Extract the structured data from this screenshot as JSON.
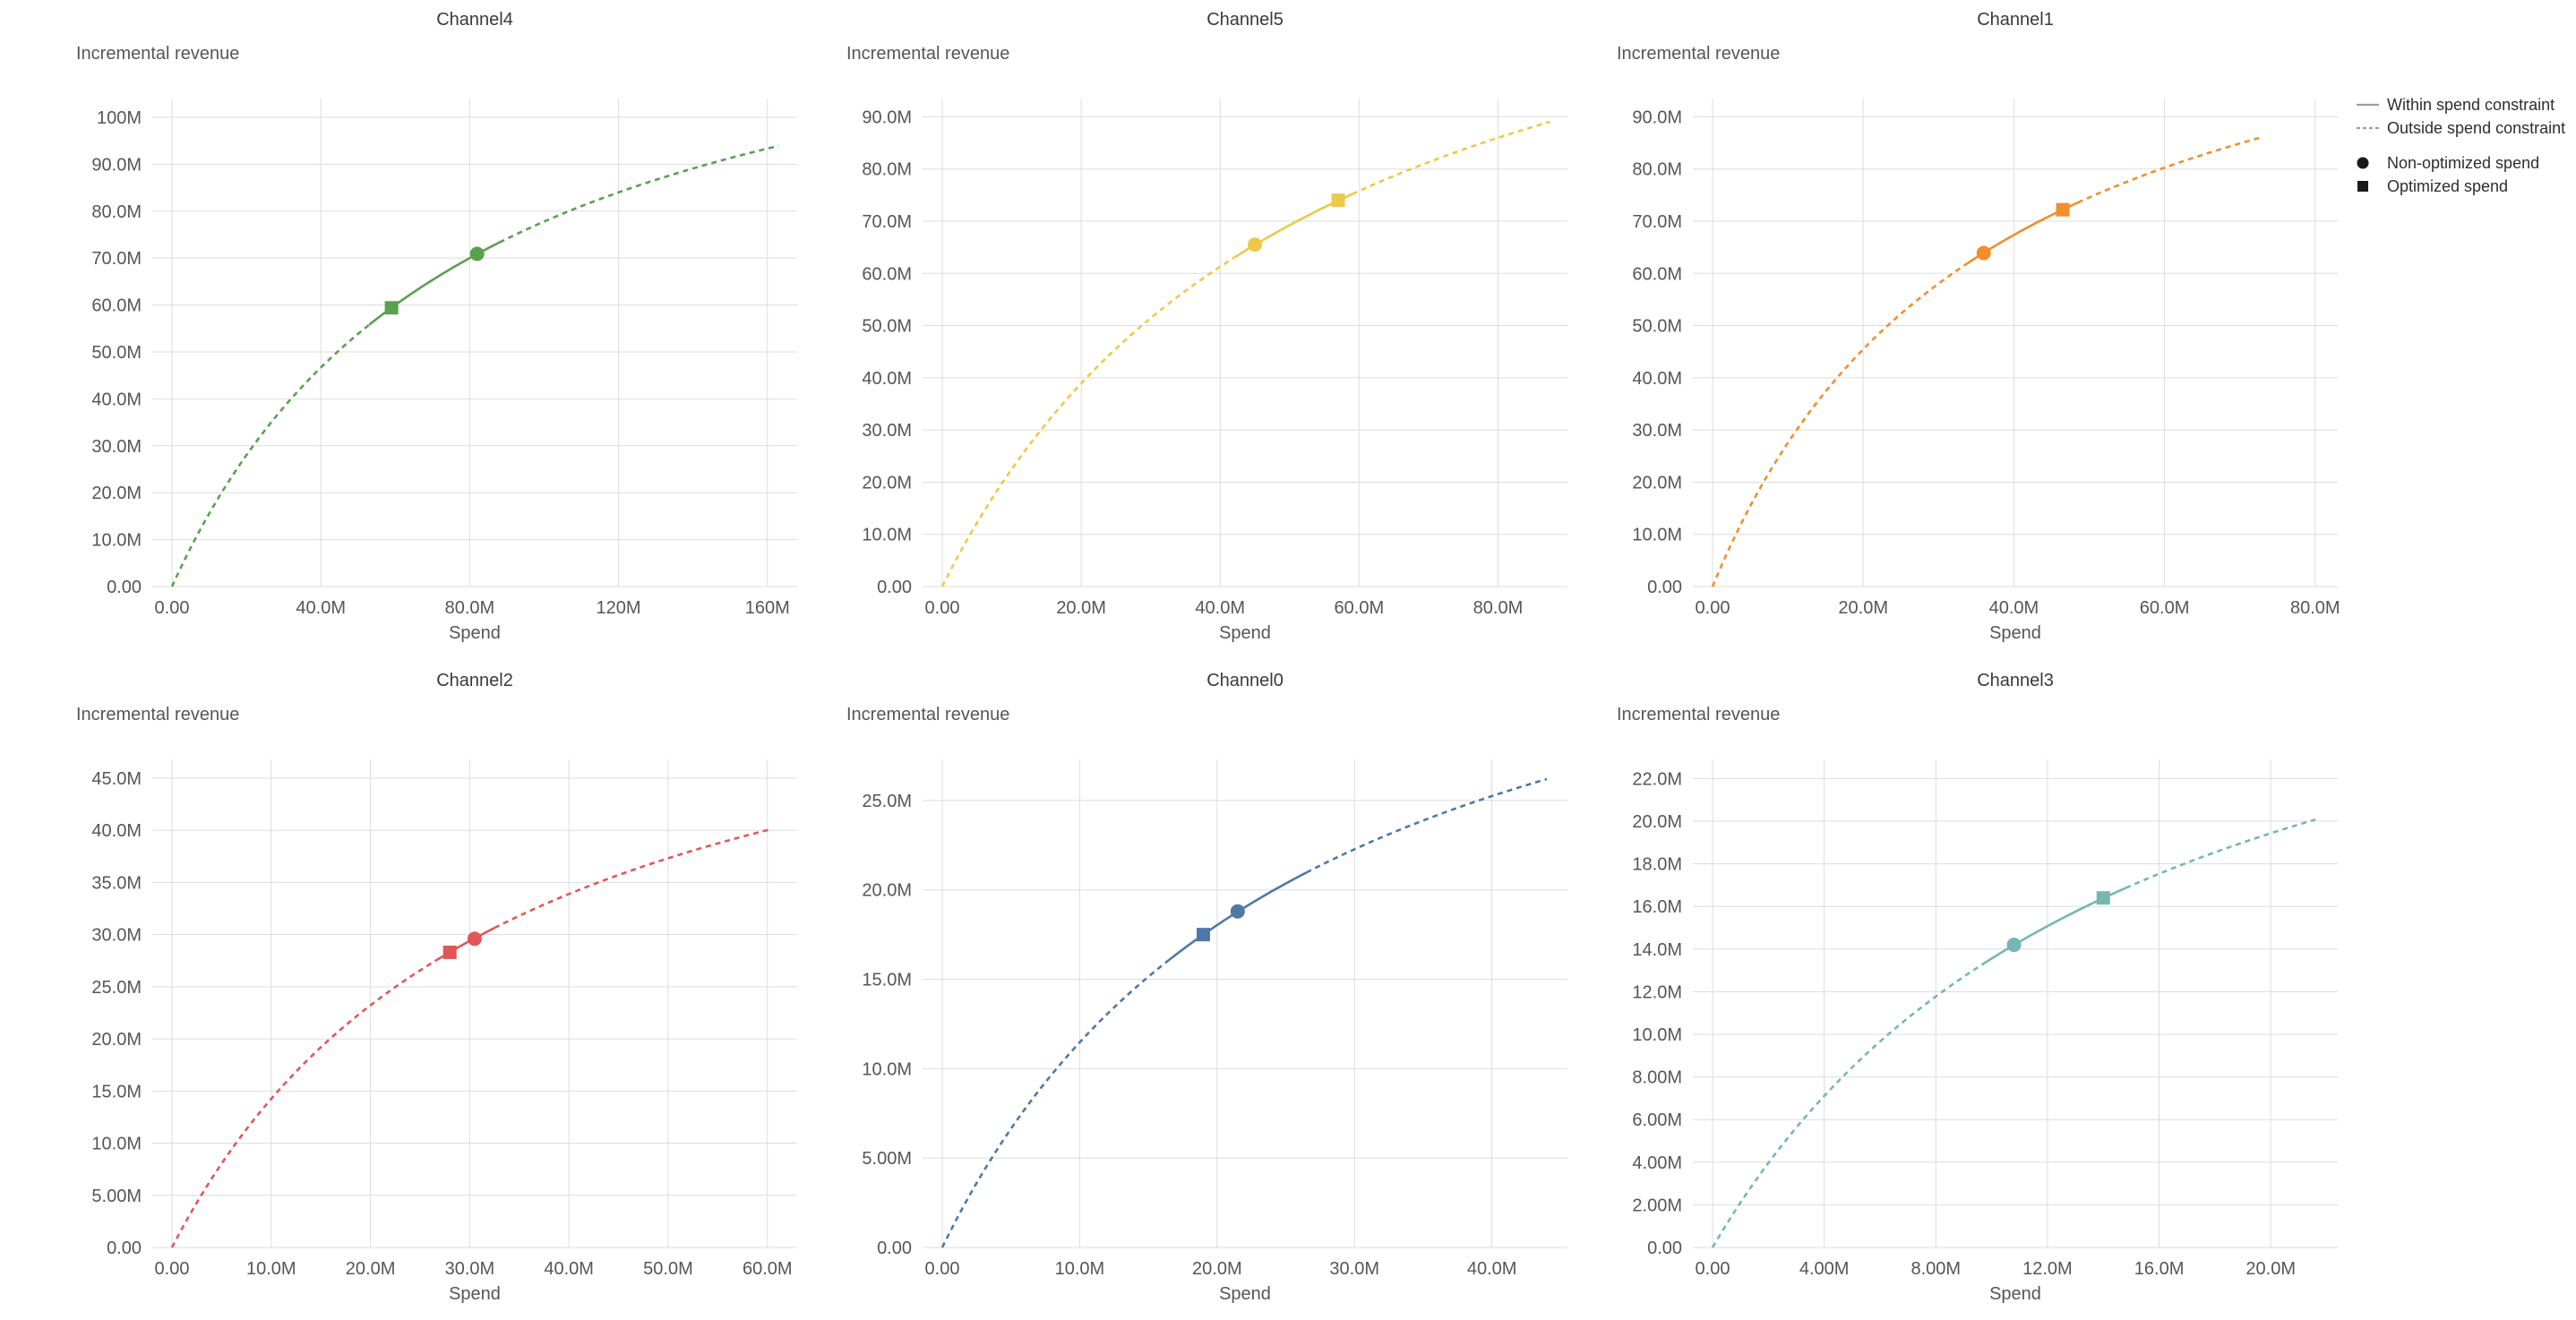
{
  "page": {
    "background_color": "#ffffff",
    "grid_color": "#dddddd"
  },
  "legend": {
    "line_color": "#9e9e9e",
    "marker_color": "#1a1a1a",
    "items": [
      {
        "marker": "solid-line",
        "label": "Within spend constraint"
      },
      {
        "marker": "dashed-line",
        "label": "Outside spend constraint"
      },
      {
        "marker": "circle",
        "label": "Non-optimized spend"
      },
      {
        "marker": "square",
        "label": "Optimized spend"
      }
    ]
  },
  "chart_data": [
    {
      "type": "line",
      "title": "Channel4",
      "ylabel": "Incremental revenue",
      "xlabel": "Spend",
      "color": "#59a14f",
      "units": "millions",
      "x_domain": [
        0,
        168
      ],
      "y_domain": [
        0,
        104
      ],
      "x_ticks": [
        0,
        40,
        80,
        120,
        160
      ],
      "x_tick_labels": [
        "0.00",
        "40.0M",
        "80.0M",
        "120M",
        "160M"
      ],
      "y_ticks": [
        0,
        10,
        20,
        30,
        40,
        50,
        60,
        70,
        80,
        90,
        100
      ],
      "y_tick_labels": [
        "0.00",
        "10.0M",
        "20.0M",
        "30.0M",
        "40.0M",
        "50.0M",
        "60.0M",
        "70.0M",
        "80.0M",
        "90.0M",
        "100M"
      ],
      "curve": {
        "model": "hill",
        "max": 140,
        "half_saturation": 80,
        "x_end": 163
      },
      "curve_points": [
        [
          0,
          0
        ],
        [
          20,
          28.0
        ],
        [
          40,
          46.7
        ],
        [
          60,
          60.0
        ],
        [
          80,
          70.0
        ],
        [
          100,
          77.8
        ],
        [
          120,
          84.0
        ],
        [
          140,
          89.1
        ],
        [
          160,
          93.3
        ],
        [
          163,
          93.9
        ]
      ],
      "solid_range": [
        53,
        88
      ],
      "non_optimized_spend": {
        "x": 82,
        "y": 70.9
      },
      "optimized_spend": {
        "x": 59,
        "y": 59.4
      }
    },
    {
      "type": "line",
      "title": "Channel5",
      "ylabel": "Incremental revenue",
      "xlabel": "Spend",
      "color": "#edc949",
      "units": "millions",
      "x_domain": [
        0,
        90
      ],
      "y_domain": [
        0,
        93.5
      ],
      "x_ticks": [
        0,
        20,
        40,
        60,
        80
      ],
      "x_tick_labels": [
        "0.00",
        "20.0M",
        "40.0M",
        "60.0M",
        "80.0M"
      ],
      "y_ticks": [
        0,
        10,
        20,
        30,
        40,
        50,
        60,
        70,
        80,
        90
      ],
      "y_tick_labels": [
        "0.00",
        "10.0M",
        "20.0M",
        "30.0M",
        "40.0M",
        "50.0M",
        "60.0M",
        "70.0M",
        "80.0M",
        "90.0M"
      ],
      "curve": {
        "model": "hill",
        "max": 144,
        "half_saturation": 54,
        "x_end": 87.5
      },
      "curve_points": [
        [
          0,
          0
        ],
        [
          10,
          22.5
        ],
        [
          20,
          38.9
        ],
        [
          30,
          51.4
        ],
        [
          40,
          61.3
        ],
        [
          50,
          69.2
        ],
        [
          60,
          75.8
        ],
        [
          70,
          81.3
        ],
        [
          80,
          86.0
        ],
        [
          87.5,
          89.0
        ]
      ],
      "solid_range": [
        42,
        59
      ],
      "non_optimized_spend": {
        "x": 45,
        "y": 65.5
      },
      "optimized_spend": {
        "x": 57,
        "y": 74.0
      }
    },
    {
      "type": "line",
      "title": "Channel1",
      "ylabel": "Incremental revenue",
      "xlabel": "Spend",
      "color": "#f28e2b",
      "units": "millions",
      "x_domain": [
        0,
        83
      ],
      "y_domain": [
        0,
        93.5
      ],
      "x_ticks": [
        0,
        20,
        40,
        60,
        80
      ],
      "x_tick_labels": [
        "0.00",
        "20.0M",
        "40.0M",
        "60.0M",
        "80.0M"
      ],
      "y_ticks": [
        0,
        10,
        20,
        30,
        40,
        50,
        60,
        70,
        80,
        90
      ],
      "y_tick_labels": [
        "0.00",
        "10.0M",
        "20.0M",
        "30.0M",
        "40.0M",
        "50.0M",
        "60.0M",
        "70.0M",
        "80.0M",
        "90.0M"
      ],
      "curve": {
        "model": "hill",
        "max": 130,
        "half_saturation": 37.2,
        "x_end": 73
      },
      "curve_points": [
        [
          0,
          0
        ],
        [
          10,
          27.5
        ],
        [
          20,
          45.5
        ],
        [
          30,
          58.0
        ],
        [
          40,
          67.4
        ],
        [
          50,
          74.5
        ],
        [
          60,
          80.2
        ],
        [
          70,
          84.9
        ],
        [
          73,
          86.1
        ]
      ],
      "solid_range": [
        33.5,
        48.5
      ],
      "non_optimized_spend": {
        "x": 36,
        "y": 63.9
      },
      "optimized_spend": {
        "x": 46.5,
        "y": 72.2
      }
    },
    {
      "type": "line",
      "title": "Channel2",
      "ylabel": "Incremental revenue",
      "xlabel": "Spend",
      "color": "#e15759",
      "units": "millions",
      "x_domain": [
        0,
        63
      ],
      "y_domain": [
        0,
        46.8
      ],
      "x_ticks": [
        0,
        10,
        20,
        30,
        40,
        50,
        60
      ],
      "x_tick_labels": [
        "0.00",
        "10.0M",
        "20.0M",
        "30.0M",
        "40.0M",
        "50.0M",
        "60.0M"
      ],
      "y_ticks": [
        0,
        5,
        10,
        15,
        20,
        25,
        30,
        35,
        40,
        45
      ],
      "y_tick_labels": [
        "0.00",
        "5.00M",
        "10.0M",
        "15.0M",
        "20.0M",
        "25.0M",
        "30.0M",
        "35.0M",
        "40.0M",
        "45.0M"
      ],
      "curve": {
        "model": "hill",
        "max": 62.7,
        "half_saturation": 34,
        "x_end": 60.5
      },
      "curve_points": [
        [
          0,
          0
        ],
        [
          10,
          14.3
        ],
        [
          20,
          23.2
        ],
        [
          30,
          29.4
        ],
        [
          40,
          33.9
        ],
        [
          50,
          37.3
        ],
        [
          60,
          40.0
        ],
        [
          60.5,
          40.1
        ]
      ],
      "solid_range": [
        26.5,
        32.5
      ],
      "non_optimized_spend": {
        "x": 30.5,
        "y": 29.6
      },
      "optimized_spend": {
        "x": 28,
        "y": 28.3
      }
    },
    {
      "type": "line",
      "title": "Channel0",
      "ylabel": "Incremental revenue",
      "xlabel": "Spend",
      "color": "#4e79a7",
      "units": "millions",
      "x_domain": [
        0,
        45.5
      ],
      "y_domain": [
        0,
        27.3
      ],
      "x_ticks": [
        0,
        10,
        20,
        30,
        40
      ],
      "x_tick_labels": [
        "0.00",
        "10.0M",
        "20.0M",
        "30.0M",
        "40.0M"
      ],
      "y_ticks": [
        0,
        5,
        10,
        15,
        20,
        25
      ],
      "y_tick_labels": [
        "0.00",
        "5.00M",
        "10.0M",
        "15.0M",
        "20.0M",
        "25.0M"
      ],
      "curve": {
        "model": "hill",
        "max": 42.1,
        "half_saturation": 26.7,
        "x_end": 44
      },
      "curve_points": [
        [
          0,
          0
        ],
        [
          5,
          6.6
        ],
        [
          10,
          11.5
        ],
        [
          15,
          15.1
        ],
        [
          20,
          18.0
        ],
        [
          25,
          20.4
        ],
        [
          30,
          22.3
        ],
        [
          35,
          23.9
        ],
        [
          40,
          25.2
        ],
        [
          44,
          26.2
        ]
      ],
      "solid_range": [
        16.5,
        26.5
      ],
      "non_optimized_spend": {
        "x": 21.5,
        "y": 18.8
      },
      "optimized_spend": {
        "x": 19,
        "y": 17.5
      }
    },
    {
      "type": "line",
      "title": "Channel3",
      "ylabel": "Incremental revenue",
      "xlabel": "Spend",
      "color": "#76b7b2",
      "units": "millions",
      "x_domain": [
        0,
        22.4
      ],
      "y_domain": [
        0,
        22.9
      ],
      "x_ticks": [
        0,
        4,
        8,
        12,
        16,
        20
      ],
      "x_tick_labels": [
        "0.00",
        "4.00M",
        "8.00M",
        "12.0M",
        "16.0M",
        "20.0M"
      ],
      "y_ticks": [
        0,
        2,
        4,
        6,
        8,
        10,
        12,
        14,
        16,
        18,
        20,
        22
      ],
      "y_tick_labels": [
        "0.00",
        "2.00M",
        "4.00M",
        "6.00M",
        "8.00M",
        "10.0M",
        "12.0M",
        "14.0M",
        "16.0M",
        "18.0M",
        "20.0M",
        "22.0M"
      ],
      "curve": {
        "model": "hill",
        "max": 34.3,
        "half_saturation": 15.3,
        "x_end": 21.6
      },
      "curve_points": [
        [
          0,
          0
        ],
        [
          2,
          4.0
        ],
        [
          4,
          7.1
        ],
        [
          6,
          9.7
        ],
        [
          8,
          11.8
        ],
        [
          10,
          13.6
        ],
        [
          12,
          15.1
        ],
        [
          14,
          16.4
        ],
        [
          16,
          17.5
        ],
        [
          18,
          18.5
        ],
        [
          20,
          19.4
        ],
        [
          21.6,
          20.1
        ]
      ],
      "solid_range": [
        9.8,
        14.8
      ],
      "non_optimized_spend": {
        "x": 10.8,
        "y": 14.2
      },
      "optimized_spend": {
        "x": 14,
        "y": 16.4
      }
    }
  ]
}
